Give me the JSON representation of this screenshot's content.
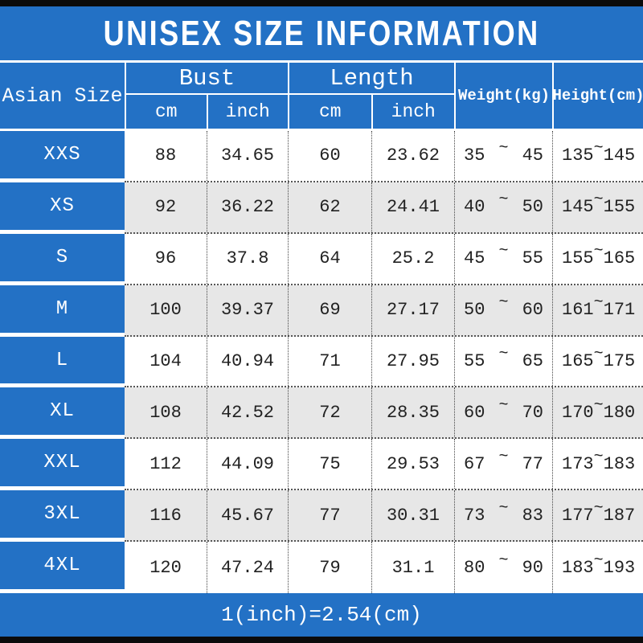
{
  "title": "UNISEX SIZE INFORMATION",
  "footer_note": "1(inch)=2.54(cm)",
  "header": {
    "size_col": "Asian Size",
    "bust": "Bust",
    "length": "Length",
    "cm": "cm",
    "inch": "inch",
    "weight": "Weight(kg)",
    "height": "Height(cm)",
    "tilde": "~"
  },
  "rows": [
    {
      "size": "XXS",
      "bust_cm": "88",
      "bust_inch": "34.65",
      "length_cm": "60",
      "length_inch": "23.62",
      "weight_min": "35",
      "weight_max": "45",
      "height_min": "135",
      "height_max": "145"
    },
    {
      "size": "XS",
      "bust_cm": "92",
      "bust_inch": "36.22",
      "length_cm": "62",
      "length_inch": "24.41",
      "weight_min": "40",
      "weight_max": "50",
      "height_min": "145",
      "height_max": "155"
    },
    {
      "size": "S",
      "bust_cm": "96",
      "bust_inch": "37.8",
      "length_cm": "64",
      "length_inch": "25.2",
      "weight_min": "45",
      "weight_max": "55",
      "height_min": "155",
      "height_max": "165"
    },
    {
      "size": "M",
      "bust_cm": "100",
      "bust_inch": "39.37",
      "length_cm": "69",
      "length_inch": "27.17",
      "weight_min": "50",
      "weight_max": "60",
      "height_min": "161",
      "height_max": "171"
    },
    {
      "size": "L",
      "bust_cm": "104",
      "bust_inch": "40.94",
      "length_cm": "71",
      "length_inch": "27.95",
      "weight_min": "55",
      "weight_max": "65",
      "height_min": "165",
      "height_max": "175"
    },
    {
      "size": "XL",
      "bust_cm": "108",
      "bust_inch": "42.52",
      "length_cm": "72",
      "length_inch": "28.35",
      "weight_min": "60",
      "weight_max": "70",
      "height_min": "170",
      "height_max": "180"
    },
    {
      "size": "XXL",
      "bust_cm": "112",
      "bust_inch": "44.09",
      "length_cm": "75",
      "length_inch": "29.53",
      "weight_min": "67",
      "weight_max": "77",
      "height_min": "173",
      "height_max": "183"
    },
    {
      "size": "3XL",
      "bust_cm": "116",
      "bust_inch": "45.67",
      "length_cm": "77",
      "length_inch": "30.31",
      "weight_min": "73",
      "weight_max": "83",
      "height_min": "177",
      "height_max": "187"
    },
    {
      "size": "4XL",
      "bust_cm": "120",
      "bust_inch": "47.24",
      "length_cm": "79",
      "length_inch": "31.1",
      "weight_min": "80",
      "weight_max": "90",
      "height_min": "183",
      "height_max": "193"
    }
  ],
  "colors": {
    "accent_blue": "#2371c5",
    "row_alt_gray": "#e7e7e7",
    "bar_black": "#0b0b0b",
    "ink": "#222222"
  },
  "chart_data": {
    "type": "table",
    "title": "UNISEX SIZE INFORMATION",
    "columns": [
      "Asian Size",
      "Bust cm",
      "Bust inch",
      "Length cm",
      "Length inch",
      "Weight(kg)",
      "Height(cm)"
    ],
    "rows": [
      [
        "XXS",
        88,
        34.65,
        60,
        23.62,
        "35~45",
        "135~145"
      ],
      [
        "XS",
        92,
        36.22,
        62,
        24.41,
        "40~50",
        "145~155"
      ],
      [
        "S",
        96,
        37.8,
        64,
        25.2,
        "45~55",
        "155~165"
      ],
      [
        "M",
        100,
        39.37,
        69,
        27.17,
        "50~60",
        "161~171"
      ],
      [
        "L",
        104,
        40.94,
        71,
        27.95,
        "55~65",
        "165~175"
      ],
      [
        "XL",
        108,
        42.52,
        72,
        28.35,
        "60~70",
        "170~180"
      ],
      [
        "XXL",
        112,
        44.09,
        75,
        29.53,
        "67~77",
        "173~183"
      ],
      [
        "3XL",
        116,
        45.67,
        77,
        30.31,
        "73~83",
        "177~187"
      ],
      [
        "4XL",
        120,
        47.24,
        79,
        31.1,
        "80~90",
        "183~193"
      ]
    ],
    "note": "1(inch)=2.54(cm)"
  }
}
